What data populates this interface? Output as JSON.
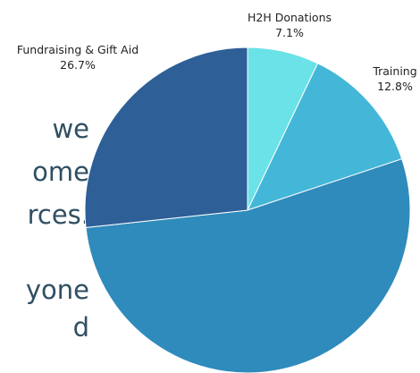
{
  "background_text": {
    "lines": [
      "we",
      "ome",
      "rces.",
      "",
      "yone",
      "d"
    ]
  },
  "chart_data": {
    "type": "pie",
    "title": "",
    "slices": [
      {
        "label": "H2H Donations",
        "value": 7.1,
        "display": "7.1%",
        "color": "#6ae2e8"
      },
      {
        "label": "Training",
        "value": 12.8,
        "display": "12.8%",
        "color": "#44b7d8"
      },
      {
        "label": "",
        "value": 53.4,
        "display": "",
        "color": "#2f8bbb"
      },
      {
        "label": "Fundraising & Gift Aid",
        "value": 26.7,
        "display": "26.7%",
        "color": "#2e5f97"
      }
    ],
    "start_angle_deg": 0,
    "direction": "clockwise",
    "legend": "none"
  }
}
